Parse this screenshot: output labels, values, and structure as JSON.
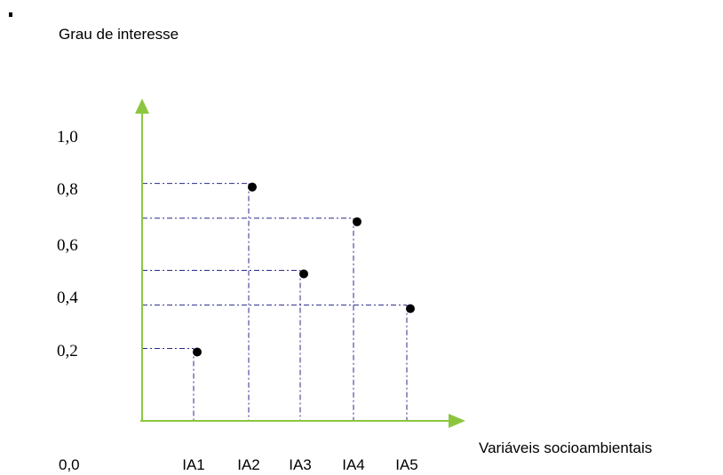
{
  "chart_data": {
    "type": "scatter",
    "ylabel": "Grau de interesse",
    "xlabel": "Variáveis socioambientais",
    "categories": [
      "IA1",
      "IA2",
      "IA3",
      "IA4",
      "IA5"
    ],
    "y_ticks": [
      "0,2",
      "0,4",
      "0,6",
      "0,8",
      "1,0"
    ],
    "origin_label": "0,0",
    "ylim": [
      0,
      1.0
    ],
    "values": [
      0.25,
      0.82,
      0.52,
      0.7,
      0.4
    ],
    "grid": false,
    "guide_lines": "dash-dot from each point to both axes",
    "colors": {
      "axes": "#8cc63f",
      "guides": "#2a2a8a",
      "points": "#000000"
    }
  }
}
